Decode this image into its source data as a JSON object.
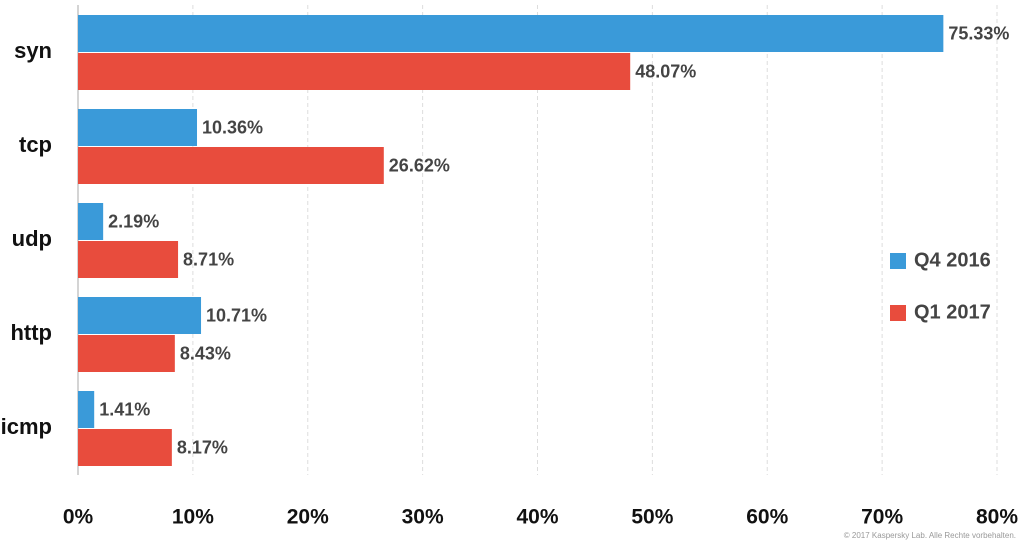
{
  "chart_data": {
    "type": "bar",
    "orientation": "horizontal",
    "categories": [
      "syn",
      "tcp",
      "udp",
      "http",
      "icmp"
    ],
    "series": [
      {
        "name": "Q4 2016",
        "color": "#3a9ad9",
        "values": [
          75.33,
          10.36,
          2.19,
          10.71,
          1.41
        ],
        "value_labels": [
          "75.33%",
          "10.36%",
          "2.19%",
          "10.71%",
          "1.41%"
        ]
      },
      {
        "name": "Q1 2017",
        "color": "#e84c3d",
        "values": [
          48.07,
          26.62,
          8.71,
          8.43,
          8.17
        ],
        "value_labels": [
          "48.07%",
          "26.62%",
          "8.71%",
          "8.43%",
          "8.17%"
        ]
      }
    ],
    "xlim": [
      0,
      80
    ],
    "xticks": [
      {
        "value": 0,
        "label": "0%"
      },
      {
        "value": 10,
        "label": "10%"
      },
      {
        "value": 20,
        "label": "20%"
      },
      {
        "value": 30,
        "label": "30%"
      },
      {
        "value": 40,
        "label": "40%"
      },
      {
        "value": 50,
        "label": "50%"
      },
      {
        "value": 60,
        "label": "60%"
      },
      {
        "value": 70,
        "label": "70%"
      },
      {
        "value": 80,
        "label": "80%"
      }
    ],
    "grid": true,
    "legend": "right",
    "footnote": "© 2017 Kaspersky Lab. Alle Rechte vorbehalten."
  }
}
